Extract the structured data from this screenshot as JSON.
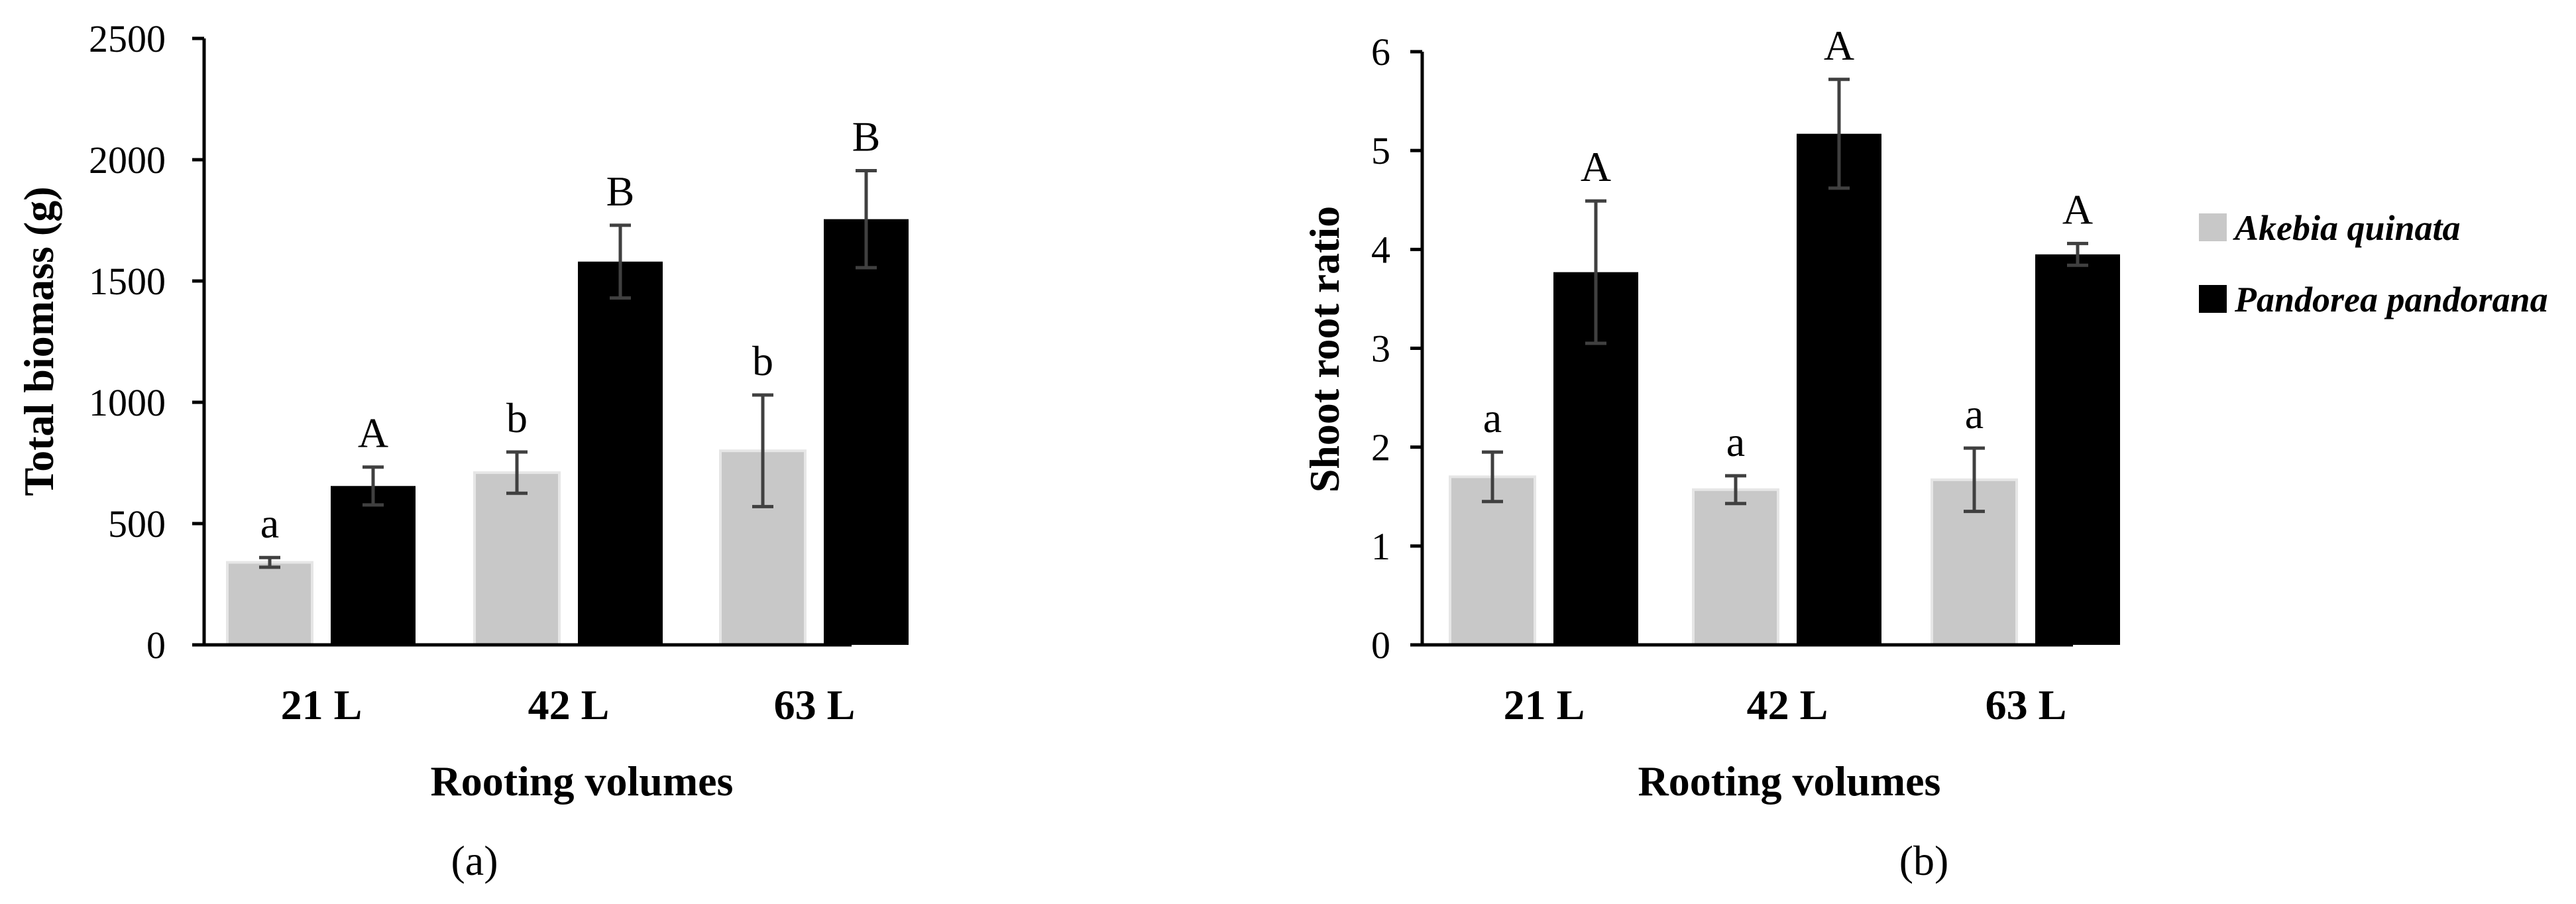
{
  "chart_data": [
    {
      "type": "bar",
      "panel_label": "(a)",
      "categories": [
        "21 L",
        "42 L",
        "63 L"
      ],
      "xlabel": "Rooting volumes",
      "ylabel": "Total biomass (g)",
      "ylim": [
        0,
        2500
      ],
      "yticks": [
        0,
        500,
        1000,
        1500,
        2000,
        2500
      ],
      "series": [
        {
          "name": "Akebia quinata",
          "color": "#c8c8c8",
          "values": [
            340,
            710,
            800
          ],
          "error": [
            20,
            85,
            230
          ],
          "letters": [
            "a",
            "b",
            "b"
          ]
        },
        {
          "name": "Pandorea pandorana",
          "color": "#000000",
          "values": [
            655,
            1580,
            1755
          ],
          "error": [
            78,
            150,
            200
          ],
          "letters": [
            "A",
            "B",
            "B"
          ]
        }
      ]
    },
    {
      "type": "bar",
      "panel_label": "(b)",
      "categories": [
        "21 L",
        "42 L",
        "63 L"
      ],
      "xlabel": "Rooting volumes",
      "ylabel": "Shoot root ratio",
      "ylim": [
        0,
        6
      ],
      "yticks": [
        0,
        1,
        2,
        3,
        4,
        5,
        6
      ],
      "series": [
        {
          "name": "Akebia quinata",
          "color": "#c8c8c8",
          "values": [
            1.7,
            1.57,
            1.67
          ],
          "error": [
            0.25,
            0.14,
            0.32
          ],
          "letters": [
            "a",
            "a",
            "a"
          ]
        },
        {
          "name": "Pandorea pandorana",
          "color": "#000000",
          "values": [
            3.77,
            5.17,
            3.95
          ],
          "error": [
            0.72,
            0.55,
            0.11
          ],
          "letters": [
            "A",
            "A",
            "A"
          ]
        }
      ]
    }
  ],
  "legend": {
    "position": "right",
    "items": [
      {
        "label": "Akebia quinata",
        "color": "#c8c8c8"
      },
      {
        "label": "Pandorea pandorana",
        "color": "#000000"
      }
    ]
  }
}
